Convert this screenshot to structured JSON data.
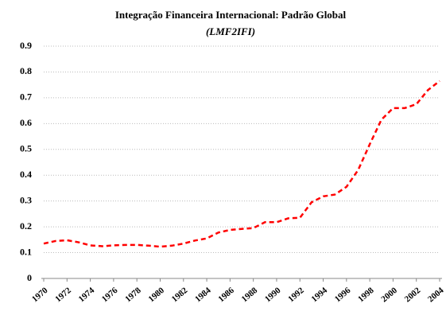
{
  "chart_data": {
    "type": "line",
    "title": "Integração Financeira Internacional: Padrão Global",
    "subtitle": "(LMF2IFI)",
    "x": [
      1970,
      1971,
      1972,
      1973,
      1974,
      1975,
      1976,
      1977,
      1978,
      1979,
      1980,
      1981,
      1982,
      1983,
      1984,
      1985,
      1986,
      1987,
      1988,
      1989,
      1990,
      1991,
      1992,
      1993,
      1994,
      1995,
      1996,
      1997,
      1998,
      1999,
      2000,
      2001,
      2002,
      2003,
      2004
    ],
    "series": [
      {
        "color": "#ff0000",
        "values": [
          0.135,
          0.145,
          0.148,
          0.14,
          0.128,
          0.125,
          0.128,
          0.13,
          0.13,
          0.127,
          0.123,
          0.127,
          0.135,
          0.147,
          0.155,
          0.178,
          0.188,
          0.192,
          0.195,
          0.218,
          0.218,
          0.233,
          0.235,
          0.295,
          0.318,
          0.325,
          0.355,
          0.42,
          0.52,
          0.615,
          0.66,
          0.66,
          0.675,
          0.73,
          0.765
        ]
      }
    ],
    "xlim": [
      1970,
      2004
    ],
    "xticks": [
      1970,
      1972,
      1974,
      1976,
      1978,
      1980,
      1982,
      1984,
      1986,
      1988,
      1990,
      1992,
      1994,
      1996,
      1998,
      2000,
      2002,
      2004
    ],
    "ylim": [
      0,
      0.9
    ],
    "yticks": [
      0,
      0.1,
      0.2,
      0.3,
      0.4,
      0.5,
      0.6,
      0.7,
      0.8,
      0.9
    ],
    "grid": true
  }
}
